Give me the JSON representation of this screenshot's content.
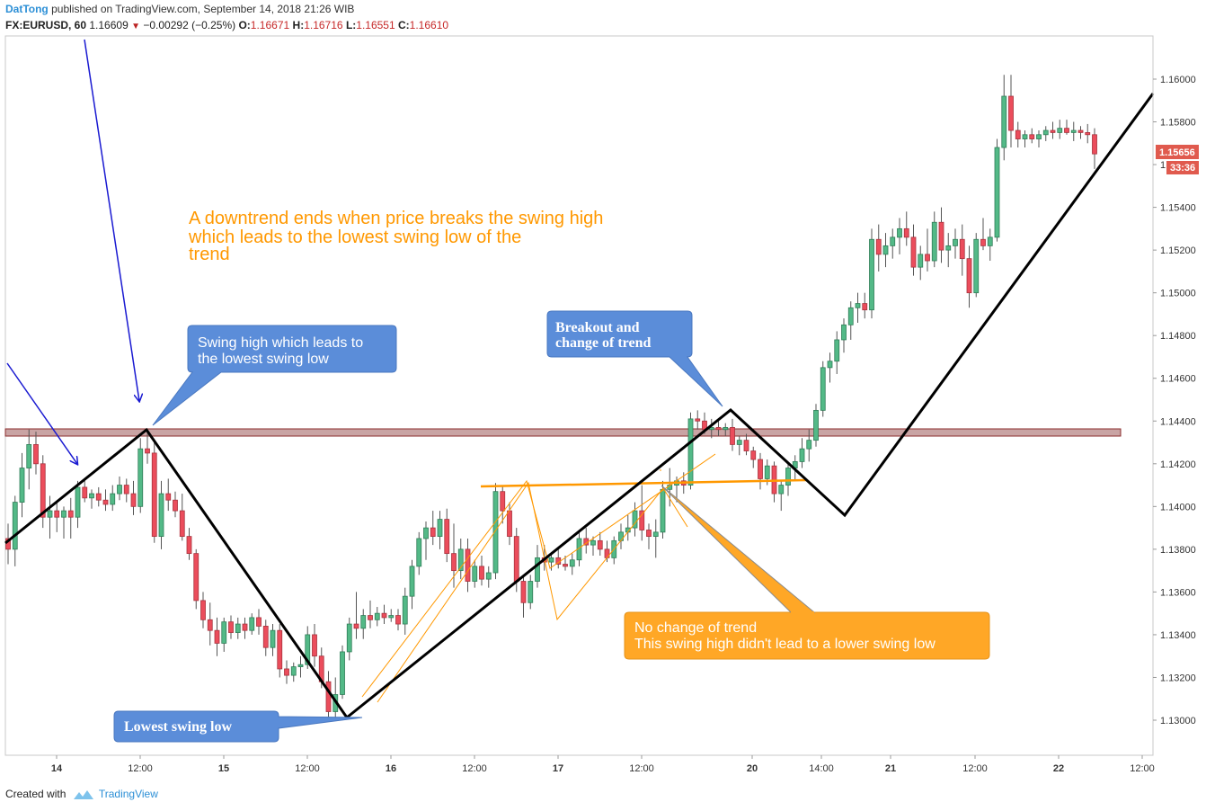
{
  "header": {
    "author": "DatTong",
    "published": "published on TradingView.com, September 14, 2018 21:26 WIB",
    "symbol": "FX:EURUSD, 60",
    "last": "1.16609",
    "change": "−0.00292 (−0.25%)",
    "open_label": "O:",
    "open": "1.16671",
    "high_label": "H:",
    "high": "1.16716",
    "low_label": "L:",
    "low": "1.16551",
    "close_label": "C:",
    "close": "1.16610"
  },
  "footer": {
    "created_with": "Created with",
    "brand": "TradingView"
  },
  "colors": {
    "up": "#53b987",
    "down": "#eb4d5c",
    "annotation_blue": "#5b8dd9",
    "annotation_orange": "#ffa726",
    "trendline": "#000000",
    "resistance_zone": "#c9a4a4"
  },
  "price_tag": {
    "price": "1.15656",
    "timer": "33:36"
  },
  "annotations": {
    "downtrend_note": [
      "A downtrend ends when price breaks the swing high",
      "which leads to the lowest swing low of the",
      "trend"
    ],
    "swing_high_callout": [
      "Swing high which leads to",
      "the lowest swing low"
    ],
    "breakout_callout": [
      "Breakout and",
      "change of trend"
    ],
    "lowest_low_callout": "Lowest swing low",
    "no_change_callout": [
      "No change of trend",
      "This swing high didn't lead to a lower swing low"
    ]
  },
  "chart_data": {
    "type": "candlestick",
    "ylim": [
      1.1278,
      1.1618
    ],
    "y_ticks": [
      "1.16000",
      "1.15800",
      "1.15600",
      "1.15400",
      "1.15200",
      "1.15000",
      "1.14800",
      "1.14600",
      "1.14400",
      "1.14200",
      "1.14000",
      "1.13800",
      "1.13600",
      "1.13400",
      "1.13200",
      "1.13000"
    ],
    "x_ticks": [
      "14",
      "12:00",
      "15",
      "12:00",
      "16",
      "12:00",
      "17",
      "12:00",
      "20",
      "14:00",
      "21",
      "12:00",
      "22",
      "12:00"
    ],
    "resistance_zone": [
      1.1433,
      1.1436
    ],
    "zigzag": [
      {
        "i": 0,
        "p": 1.1383
      },
      {
        "i": 19,
        "p": 1.1435
      },
      {
        "i": 46,
        "p": 1.13
      },
      {
        "i": 98,
        "p": 1.1445
      },
      {
        "i": 113,
        "p": 1.1396
      },
      {
        "i": 155,
        "p": 1.1593
      }
    ],
    "candles": [
      {
        "o": 1.1385,
        "h": 1.1392,
        "l": 1.1373,
        "c": 1.138
      },
      {
        "o": 1.138,
        "h": 1.1405,
        "l": 1.1372,
        "c": 1.1402
      },
      {
        "o": 1.1402,
        "h": 1.1425,
        "l": 1.1395,
        "c": 1.1418
      },
      {
        "o": 1.1418,
        "h": 1.1436,
        "l": 1.1408,
        "c": 1.1429
      },
      {
        "o": 1.1429,
        "h": 1.1435,
        "l": 1.1415,
        "c": 1.142
      },
      {
        "o": 1.142,
        "h": 1.1424,
        "l": 1.139,
        "c": 1.1395
      },
      {
        "o": 1.1395,
        "h": 1.1405,
        "l": 1.1385,
        "c": 1.1398
      },
      {
        "o": 1.1398,
        "h": 1.1402,
        "l": 1.1388,
        "c": 1.1395
      },
      {
        "o": 1.1395,
        "h": 1.14,
        "l": 1.1385,
        "c": 1.1398
      },
      {
        "o": 1.1398,
        "h": 1.1404,
        "l": 1.1385,
        "c": 1.1395
      },
      {
        "o": 1.1395,
        "h": 1.1412,
        "l": 1.139,
        "c": 1.1409
      },
      {
        "o": 1.1409,
        "h": 1.1412,
        "l": 1.1402,
        "c": 1.1404
      },
      {
        "o": 1.1404,
        "h": 1.1408,
        "l": 1.1399,
        "c": 1.1406
      },
      {
        "o": 1.1406,
        "h": 1.1409,
        "l": 1.14,
        "c": 1.1403
      },
      {
        "o": 1.1403,
        "h": 1.1408,
        "l": 1.1398,
        "c": 1.1401
      },
      {
        "o": 1.1401,
        "h": 1.141,
        "l": 1.1398,
        "c": 1.1406
      },
      {
        "o": 1.1406,
        "h": 1.1414,
        "l": 1.1403,
        "c": 1.141
      },
      {
        "o": 1.141,
        "h": 1.1413,
        "l": 1.1402,
        "c": 1.1406
      },
      {
        "o": 1.1406,
        "h": 1.1412,
        "l": 1.1396,
        "c": 1.14
      },
      {
        "o": 1.14,
        "h": 1.1432,
        "l": 1.1397,
        "c": 1.1427
      },
      {
        "o": 1.1427,
        "h": 1.1434,
        "l": 1.142,
        "c": 1.1425
      },
      {
        "o": 1.1425,
        "h": 1.143,
        "l": 1.1383,
        "c": 1.1386
      },
      {
        "o": 1.1386,
        "h": 1.1412,
        "l": 1.138,
        "c": 1.1406
      },
      {
        "o": 1.1406,
        "h": 1.1413,
        "l": 1.1398,
        "c": 1.1403
      },
      {
        "o": 1.1403,
        "h": 1.1407,
        "l": 1.1395,
        "c": 1.1398
      },
      {
        "o": 1.1398,
        "h": 1.1406,
        "l": 1.1384,
        "c": 1.1386
      },
      {
        "o": 1.1386,
        "h": 1.139,
        "l": 1.1375,
        "c": 1.1378
      },
      {
        "o": 1.1378,
        "h": 1.138,
        "l": 1.1352,
        "c": 1.1356
      },
      {
        "o": 1.1356,
        "h": 1.136,
        "l": 1.1343,
        "c": 1.1347
      },
      {
        "o": 1.1347,
        "h": 1.1355,
        "l": 1.1335,
        "c": 1.1342
      },
      {
        "o": 1.1342,
        "h": 1.1348,
        "l": 1.133,
        "c": 1.1336
      },
      {
        "o": 1.1336,
        "h": 1.1348,
        "l": 1.1332,
        "c": 1.1346
      },
      {
        "o": 1.1346,
        "h": 1.1349,
        "l": 1.1338,
        "c": 1.1341
      },
      {
        "o": 1.1341,
        "h": 1.1348,
        "l": 1.1338,
        "c": 1.1345
      },
      {
        "o": 1.1345,
        "h": 1.1348,
        "l": 1.1338,
        "c": 1.1342
      },
      {
        "o": 1.1342,
        "h": 1.135,
        "l": 1.134,
        "c": 1.1348
      },
      {
        "o": 1.1348,
        "h": 1.1352,
        "l": 1.134,
        "c": 1.1344
      },
      {
        "o": 1.1344,
        "h": 1.1347,
        "l": 1.133,
        "c": 1.1334
      },
      {
        "o": 1.1334,
        "h": 1.1345,
        "l": 1.133,
        "c": 1.1342
      },
      {
        "o": 1.1342,
        "h": 1.1345,
        "l": 1.132,
        "c": 1.1324
      },
      {
        "o": 1.1324,
        "h": 1.1328,
        "l": 1.1317,
        "c": 1.1321
      },
      {
        "o": 1.1321,
        "h": 1.1327,
        "l": 1.1318,
        "c": 1.1325
      },
      {
        "o": 1.1325,
        "h": 1.133,
        "l": 1.132,
        "c": 1.1326
      },
      {
        "o": 1.1326,
        "h": 1.1344,
        "l": 1.1324,
        "c": 1.134
      },
      {
        "o": 1.134,
        "h": 1.1345,
        "l": 1.1325,
        "c": 1.133
      },
      {
        "o": 1.133,
        "h": 1.1334,
        "l": 1.1315,
        "c": 1.1318
      },
      {
        "o": 1.1318,
        "h": 1.1323,
        "l": 1.13,
        "c": 1.1304
      },
      {
        "o": 1.1304,
        "h": 1.132,
        "l": 1.13,
        "c": 1.1312
      },
      {
        "o": 1.1312,
        "h": 1.1335,
        "l": 1.131,
        "c": 1.1332
      },
      {
        "o": 1.1332,
        "h": 1.1348,
        "l": 1.1328,
        "c": 1.1345
      },
      {
        "o": 1.1345,
        "h": 1.136,
        "l": 1.1338,
        "c": 1.1343
      },
      {
        "o": 1.1343,
        "h": 1.1352,
        "l": 1.1338,
        "c": 1.1349
      },
      {
        "o": 1.1349,
        "h": 1.1356,
        "l": 1.1343,
        "c": 1.1347
      },
      {
        "o": 1.1347,
        "h": 1.1353,
        "l": 1.1344,
        "c": 1.135
      },
      {
        "o": 1.135,
        "h": 1.1354,
        "l": 1.1345,
        "c": 1.1348
      },
      {
        "o": 1.1348,
        "h": 1.1352,
        "l": 1.1346,
        "c": 1.1349
      },
      {
        "o": 1.1349,
        "h": 1.1352,
        "l": 1.1342,
        "c": 1.1345
      },
      {
        "o": 1.1345,
        "h": 1.1362,
        "l": 1.134,
        "c": 1.1358
      },
      {
        "o": 1.1358,
        "h": 1.1375,
        "l": 1.1352,
        "c": 1.1372
      },
      {
        "o": 1.1372,
        "h": 1.1388,
        "l": 1.1368,
        "c": 1.1385
      },
      {
        "o": 1.1385,
        "h": 1.1393,
        "l": 1.1375,
        "c": 1.139
      },
      {
        "o": 1.139,
        "h": 1.1398,
        "l": 1.1382,
        "c": 1.1386
      },
      {
        "o": 1.1386,
        "h": 1.1398,
        "l": 1.138,
        "c": 1.1394
      },
      {
        "o": 1.1394,
        "h": 1.1399,
        "l": 1.1374,
        "c": 1.1378
      },
      {
        "o": 1.1378,
        "h": 1.1392,
        "l": 1.1362,
        "c": 1.137
      },
      {
        "o": 1.137,
        "h": 1.1385,
        "l": 1.1366,
        "c": 1.138
      },
      {
        "o": 1.138,
        "h": 1.1385,
        "l": 1.136,
        "c": 1.1365
      },
      {
        "o": 1.1365,
        "h": 1.1375,
        "l": 1.1362,
        "c": 1.1372
      },
      {
        "o": 1.1372,
        "h": 1.1377,
        "l": 1.1363,
        "c": 1.1366
      },
      {
        "o": 1.1366,
        "h": 1.1372,
        "l": 1.1362,
        "c": 1.1369
      },
      {
        "o": 1.1369,
        "h": 1.1411,
        "l": 1.1366,
        "c": 1.1407
      },
      {
        "o": 1.1407,
        "h": 1.141,
        "l": 1.1392,
        "c": 1.1398
      },
      {
        "o": 1.1398,
        "h": 1.1402,
        "l": 1.1382,
        "c": 1.1386
      },
      {
        "o": 1.1386,
        "h": 1.139,
        "l": 1.136,
        "c": 1.1365
      },
      {
        "o": 1.1365,
        "h": 1.1368,
        "l": 1.1348,
        "c": 1.1355
      },
      {
        "o": 1.1355,
        "h": 1.1368,
        "l": 1.1352,
        "c": 1.1365
      },
      {
        "o": 1.1365,
        "h": 1.1382,
        "l": 1.1362,
        "c": 1.1376
      },
      {
        "o": 1.1376,
        "h": 1.1382,
        "l": 1.137,
        "c": 1.1374
      },
      {
        "o": 1.1374,
        "h": 1.1378,
        "l": 1.137,
        "c": 1.1376
      },
      {
        "o": 1.1376,
        "h": 1.138,
        "l": 1.1371,
        "c": 1.1373
      },
      {
        "o": 1.1373,
        "h": 1.1377,
        "l": 1.137,
        "c": 1.1372
      },
      {
        "o": 1.1372,
        "h": 1.1378,
        "l": 1.1368,
        "c": 1.1375
      },
      {
        "o": 1.1375,
        "h": 1.1388,
        "l": 1.1372,
        "c": 1.1385
      },
      {
        "o": 1.1385,
        "h": 1.139,
        "l": 1.1378,
        "c": 1.1382
      },
      {
        "o": 1.1382,
        "h": 1.1386,
        "l": 1.1377,
        "c": 1.1384
      },
      {
        "o": 1.1384,
        "h": 1.1388,
        "l": 1.1377,
        "c": 1.138
      },
      {
        "o": 1.138,
        "h": 1.1384,
        "l": 1.1374,
        "c": 1.1376
      },
      {
        "o": 1.1376,
        "h": 1.1386,
        "l": 1.1373,
        "c": 1.1384
      },
      {
        "o": 1.1384,
        "h": 1.1392,
        "l": 1.138,
        "c": 1.1388
      },
      {
        "o": 1.1388,
        "h": 1.1396,
        "l": 1.1384,
        "c": 1.139
      },
      {
        "o": 1.139,
        "h": 1.1402,
        "l": 1.1386,
        "c": 1.1398
      },
      {
        "o": 1.1398,
        "h": 1.141,
        "l": 1.1384,
        "c": 1.1389
      },
      {
        "o": 1.1389,
        "h": 1.1392,
        "l": 1.138,
        "c": 1.1386
      },
      {
        "o": 1.1386,
        "h": 1.1394,
        "l": 1.1376,
        "c": 1.1388
      },
      {
        "o": 1.1388,
        "h": 1.1412,
        "l": 1.1385,
        "c": 1.1408
      },
      {
        "o": 1.1408,
        "h": 1.1418,
        "l": 1.14,
        "c": 1.141
      },
      {
        "o": 1.141,
        "h": 1.1414,
        "l": 1.1402,
        "c": 1.1412
      },
      {
        "o": 1.1412,
        "h": 1.1416,
        "l": 1.1406,
        "c": 1.141
      },
      {
        "o": 1.141,
        "h": 1.1444,
        "l": 1.1408,
        "c": 1.1441
      },
      {
        "o": 1.1441,
        "h": 1.1445,
        "l": 1.1436,
        "c": 1.144
      },
      {
        "o": 1.144,
        "h": 1.1444,
        "l": 1.1434,
        "c": 1.1436
      },
      {
        "o": 1.1436,
        "h": 1.1441,
        "l": 1.1432,
        "c": 1.1437
      },
      {
        "o": 1.1437,
        "h": 1.144,
        "l": 1.1433,
        "c": 1.1436
      },
      {
        "o": 1.1436,
        "h": 1.1439,
        "l": 1.1433,
        "c": 1.1437
      },
      {
        "o": 1.1437,
        "h": 1.1441,
        "l": 1.1426,
        "c": 1.1429
      },
      {
        "o": 1.1429,
        "h": 1.1433,
        "l": 1.1424,
        "c": 1.1431
      },
      {
        "o": 1.1431,
        "h": 1.1434,
        "l": 1.1424,
        "c": 1.1426
      },
      {
        "o": 1.1426,
        "h": 1.1428,
        "l": 1.1418,
        "c": 1.1422
      },
      {
        "o": 1.1422,
        "h": 1.1425,
        "l": 1.1408,
        "c": 1.1413
      },
      {
        "o": 1.1413,
        "h": 1.1422,
        "l": 1.141,
        "c": 1.1419
      },
      {
        "o": 1.1419,
        "h": 1.1421,
        "l": 1.1402,
        "c": 1.1406
      },
      {
        "o": 1.1406,
        "h": 1.1412,
        "l": 1.1398,
        "c": 1.141
      },
      {
        "o": 1.141,
        "h": 1.142,
        "l": 1.1405,
        "c": 1.1418
      },
      {
        "o": 1.1418,
        "h": 1.1424,
        "l": 1.1412,
        "c": 1.1421
      },
      {
        "o": 1.1421,
        "h": 1.1432,
        "l": 1.1418,
        "c": 1.1427
      },
      {
        "o": 1.1427,
        "h": 1.1436,
        "l": 1.1421,
        "c": 1.1431
      },
      {
        "o": 1.1431,
        "h": 1.1448,
        "l": 1.1428,
        "c": 1.1445
      },
      {
        "o": 1.1445,
        "h": 1.1468,
        "l": 1.1442,
        "c": 1.1465
      },
      {
        "o": 1.1465,
        "h": 1.1472,
        "l": 1.1458,
        "c": 1.1468
      },
      {
        "o": 1.1468,
        "h": 1.1482,
        "l": 1.1462,
        "c": 1.1478
      },
      {
        "o": 1.1478,
        "h": 1.1488,
        "l": 1.1472,
        "c": 1.1485
      },
      {
        "o": 1.1485,
        "h": 1.1496,
        "l": 1.1478,
        "c": 1.1493
      },
      {
        "o": 1.1493,
        "h": 1.15,
        "l": 1.1486,
        "c": 1.1495
      },
      {
        "o": 1.1495,
        "h": 1.15,
        "l": 1.1488,
        "c": 1.1492
      },
      {
        "o": 1.1492,
        "h": 1.153,
        "l": 1.1488,
        "c": 1.1525
      },
      {
        "o": 1.1525,
        "h": 1.1532,
        "l": 1.151,
        "c": 1.1518
      },
      {
        "o": 1.1518,
        "h": 1.1528,
        "l": 1.1512,
        "c": 1.1522
      },
      {
        "o": 1.1522,
        "h": 1.153,
        "l": 1.1516,
        "c": 1.1526
      },
      {
        "o": 1.1526,
        "h": 1.1535,
        "l": 1.1518,
        "c": 1.153
      },
      {
        "o": 1.153,
        "h": 1.1538,
        "l": 1.1522,
        "c": 1.1526
      },
      {
        "o": 1.1526,
        "h": 1.1532,
        "l": 1.1508,
        "c": 1.1512
      },
      {
        "o": 1.1512,
        "h": 1.1522,
        "l": 1.1506,
        "c": 1.1518
      },
      {
        "o": 1.1518,
        "h": 1.153,
        "l": 1.151,
        "c": 1.1515
      },
      {
        "o": 1.1515,
        "h": 1.1538,
        "l": 1.1512,
        "c": 1.1533
      },
      {
        "o": 1.1533,
        "h": 1.154,
        "l": 1.1514,
        "c": 1.152
      },
      {
        "o": 1.152,
        "h": 1.1528,
        "l": 1.1512,
        "c": 1.1522
      },
      {
        "o": 1.1522,
        "h": 1.153,
        "l": 1.1516,
        "c": 1.1525
      },
      {
        "o": 1.1525,
        "h": 1.1532,
        "l": 1.1508,
        "c": 1.1516
      },
      {
        "o": 1.1516,
        "h": 1.1522,
        "l": 1.1493,
        "c": 1.15
      },
      {
        "o": 1.15,
        "h": 1.1528,
        "l": 1.1498,
        "c": 1.1525
      },
      {
        "o": 1.1525,
        "h": 1.1535,
        "l": 1.152,
        "c": 1.1522
      },
      {
        "o": 1.1522,
        "h": 1.153,
        "l": 1.1515,
        "c": 1.1526
      },
      {
        "o": 1.1526,
        "h": 1.1572,
        "l": 1.1524,
        "c": 1.1568
      },
      {
        "o": 1.1568,
        "h": 1.1602,
        "l": 1.1562,
        "c": 1.1592
      },
      {
        "o": 1.1592,
        "h": 1.1602,
        "l": 1.1568,
        "c": 1.1576
      },
      {
        "o": 1.1576,
        "h": 1.158,
        "l": 1.1568,
        "c": 1.1572
      },
      {
        "o": 1.1572,
        "h": 1.1576,
        "l": 1.1568,
        "c": 1.1574
      },
      {
        "o": 1.1574,
        "h": 1.1577,
        "l": 1.157,
        "c": 1.1572
      },
      {
        "o": 1.1572,
        "h": 1.1576,
        "l": 1.1568,
        "c": 1.1574
      },
      {
        "o": 1.1574,
        "h": 1.1578,
        "l": 1.1571,
        "c": 1.1576
      },
      {
        "o": 1.1576,
        "h": 1.158,
        "l": 1.1572,
        "c": 1.1575
      },
      {
        "o": 1.1575,
        "h": 1.1581,
        "l": 1.1572,
        "c": 1.1577
      },
      {
        "o": 1.1577,
        "h": 1.1581,
        "l": 1.1574,
        "c": 1.1575
      },
      {
        "o": 1.1575,
        "h": 1.158,
        "l": 1.1571,
        "c": 1.1576
      },
      {
        "o": 1.1576,
        "h": 1.1578,
        "l": 1.1572,
        "c": 1.1575
      },
      {
        "o": 1.1575,
        "h": 1.1579,
        "l": 1.157,
        "c": 1.1574
      },
      {
        "o": 1.1574,
        "h": 1.1577,
        "l": 1.1558,
        "c": 1.1565
      }
    ]
  }
}
